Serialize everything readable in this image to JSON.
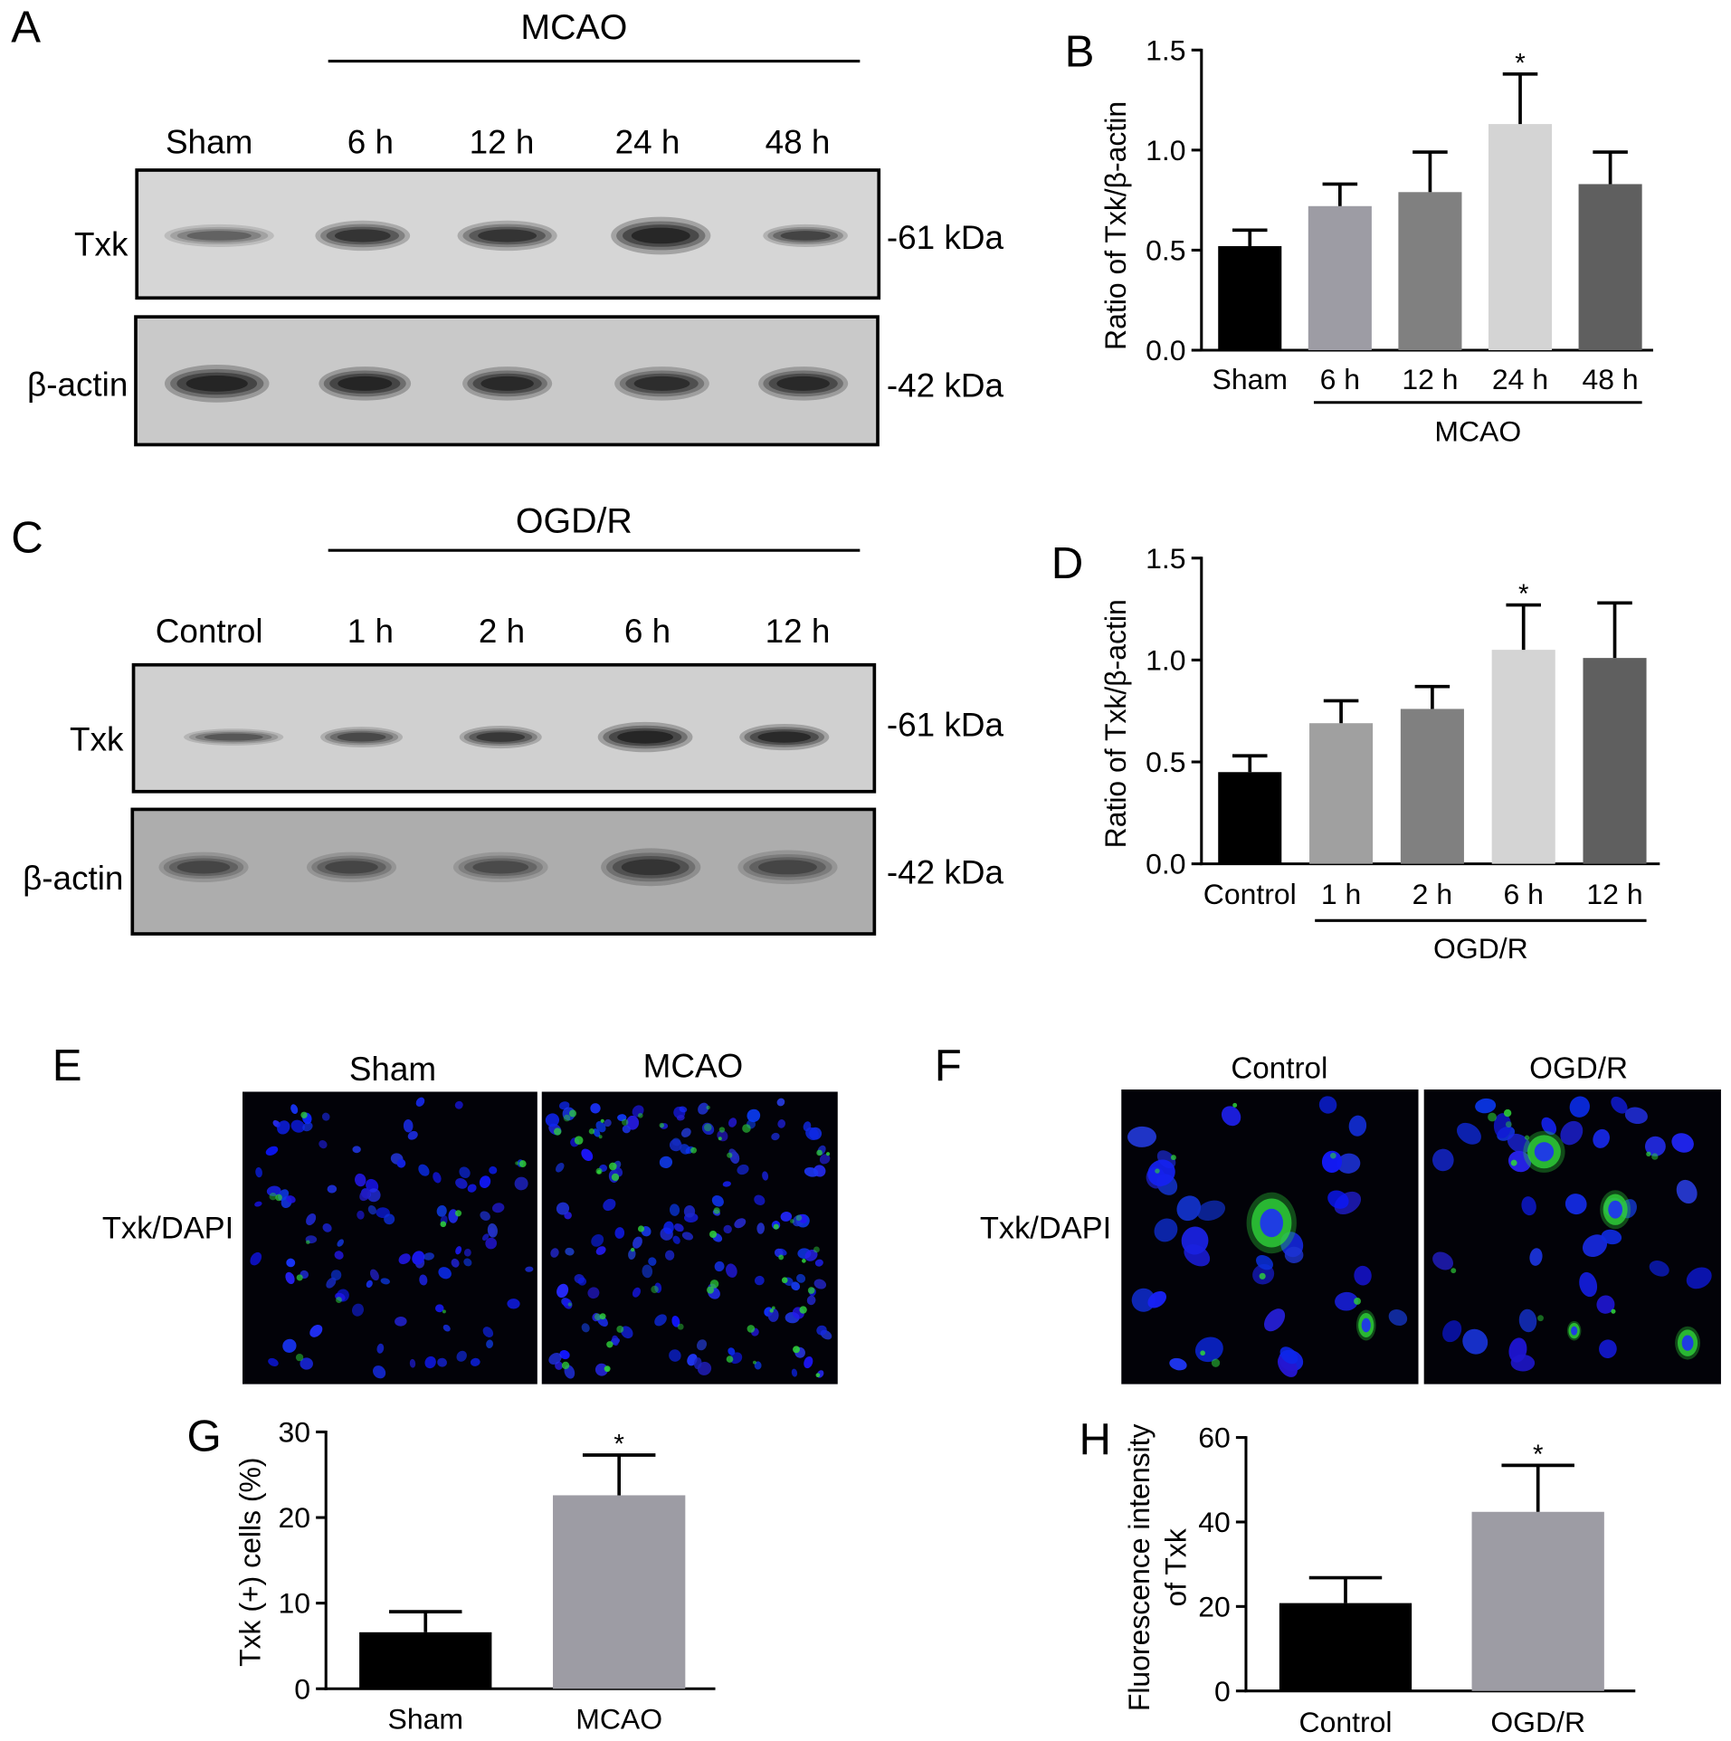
{
  "channel_colors": {
    "DAPI": "#1e30f5",
    "Txk": "#2fd23a"
  },
  "blots": [
    {
      "panel": "A",
      "group_label": "MCAO",
      "lanes": [
        "Sham",
        "6 h",
        "12 h",
        "24 h",
        "48 h"
      ],
      "rows": [
        {
          "protein": "Txk",
          "marker": "-61 kDa"
        },
        {
          "protein": "β-actin",
          "marker": "-42 kDa"
        }
      ]
    },
    {
      "panel": "C",
      "group_label": "OGD/R",
      "lanes": [
        "Control",
        "1 h",
        "2 h",
        "6 h",
        "12 h"
      ],
      "rows": [
        {
          "protein": "Txk",
          "marker": "-61 kDa"
        },
        {
          "protein": "β-actin",
          "marker": "-42 kDa"
        }
      ]
    }
  ],
  "micrographs": [
    {
      "panel": "E",
      "stain": "Txk/DAPI",
      "columns": [
        "Sham",
        "MCAO"
      ]
    },
    {
      "panel": "F",
      "stain": "Txk/DAPI",
      "columns": [
        "Control",
        "OGD/R"
      ]
    }
  ],
  "chart_data": [
    {
      "panel": "B",
      "type": "bar",
      "categories": [
        "Sham",
        "6 h",
        "12 h",
        "24 h",
        "48 h"
      ],
      "values": [
        0.52,
        0.72,
        0.79,
        1.13,
        0.83
      ],
      "errors": [
        0.08,
        0.11,
        0.2,
        0.25,
        0.16
      ],
      "colors": [
        "#000000",
        "#9d9ca4",
        "#808080",
        "#d4d4d4",
        "#5f5f5f"
      ],
      "ylabel_lines": [
        "Ratio of Txk/β-actin"
      ],
      "ylim": [
        0,
        1.5
      ],
      "yticks": [
        0,
        0.5,
        1.0,
        1.5
      ],
      "ytick_labels": [
        "0.0",
        "0.5",
        "1.0",
        "1.5"
      ],
      "group": {
        "label": "MCAO",
        "from": 1,
        "to": 4
      },
      "annotations": [
        {
          "index": 3,
          "text": "*"
        }
      ],
      "grid": false
    },
    {
      "panel": "D",
      "type": "bar",
      "categories": [
        "Control",
        "1 h",
        "2 h",
        "6 h",
        "12 h"
      ],
      "values": [
        0.45,
        0.69,
        0.76,
        1.05,
        1.01
      ],
      "errors": [
        0.08,
        0.11,
        0.11,
        0.22,
        0.27
      ],
      "colors": [
        "#000000",
        "#a0a0a0",
        "#808080",
        "#d4d4d4",
        "#5f5f5f"
      ],
      "ylabel_lines": [
        "Ratio of Txk/β-actin"
      ],
      "ylim": [
        0,
        1.5
      ],
      "yticks": [
        0,
        0.5,
        1.0,
        1.5
      ],
      "ytick_labels": [
        "0.0",
        "0.5",
        "1.0",
        "1.5"
      ],
      "group": {
        "label": "OGD/R",
        "from": 1,
        "to": 4
      },
      "annotations": [
        {
          "index": 3,
          "text": "*"
        }
      ],
      "grid": false
    },
    {
      "panel": "G",
      "type": "bar",
      "categories": [
        "Sham",
        "MCAO"
      ],
      "values": [
        6.6,
        22.6
      ],
      "errors": [
        2.4,
        4.7
      ],
      "colors": [
        "#000000",
        "#9d9ca4"
      ],
      "ylabel_lines": [
        "Txk (+) cells (%)"
      ],
      "ylim": [
        0,
        30
      ],
      "yticks": [
        0,
        10,
        20,
        30
      ],
      "ytick_labels": [
        "0",
        "10",
        "20",
        "30"
      ],
      "annotations": [
        {
          "index": 1,
          "text": "*"
        }
      ],
      "grid": false
    },
    {
      "panel": "H",
      "type": "bar",
      "categories": [
        "Control",
        "OGD/R"
      ],
      "values": [
        20.8,
        42.4
      ],
      "errors": [
        6.0,
        11.0
      ],
      "colors": [
        "#000000",
        "#9d9ca4"
      ],
      "ylabel_lines": [
        "Fluorescence intensity",
        "of Txk"
      ],
      "ylim": [
        0,
        60
      ],
      "yticks": [
        0,
        20,
        40,
        60
      ],
      "ytick_labels": [
        "0",
        "20",
        "40",
        "60"
      ],
      "annotations": [
        {
          "index": 1,
          "text": "*"
        }
      ],
      "grid": false
    }
  ]
}
